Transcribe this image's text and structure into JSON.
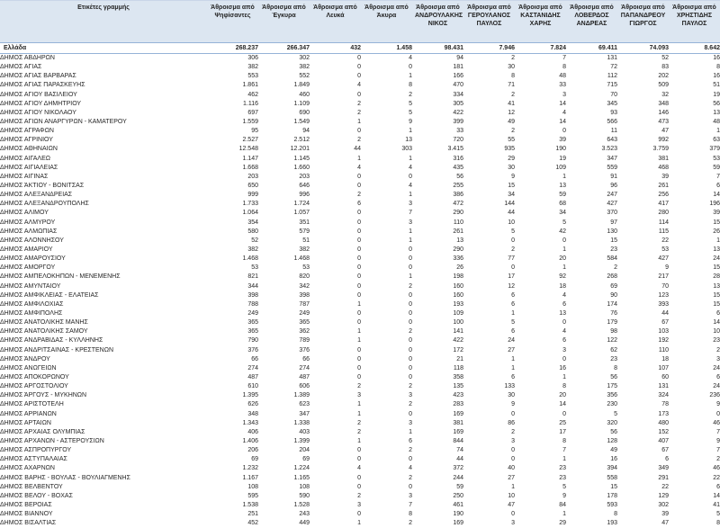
{
  "colors": {
    "header_bg": "#DCE6F1",
    "border": "#95B3D7",
    "text": "#262626"
  },
  "table": {
    "columns": [
      "Ετικέτες γραμμής",
      "Άθροισμα από Ψηφίσαντες",
      "Άθροισμα από Έγκυρα",
      "Άθροισμα από Λευκά",
      "Άθροισμα από Άκυρα",
      "Άθροισμα από ΑΝΔΡΟΥΛΑΚΗΣ ΝΙΚΟΣ",
      "Άθροισμα από ΓΕΡΟΥΛΑΝΟΣ ΠΑΥΛΟΣ",
      "Άθροισμα από ΚΑΣΤΑΝΙΔΗΣ ΧΑΡΗΣ",
      "Άθροισμα από ΛΟΒΕΡΔΟΣ ΑΝΔΡΕΑΣ",
      "Άθροισμα από ΠΑΠΑΝΔΡΕΟΥ ΓΙΩΡΓΟΣ",
      "Άθροισμα από ΧΡΗΣΤΙΔΗΣ ΠΑΥΛΟΣ"
    ],
    "total_row": [
      "Ελλάδα",
      "268.237",
      "266.347",
      "432",
      "1.458",
      "98.431",
      "7.946",
      "7.824",
      "69.411",
      "74.093",
      "8.642"
    ],
    "rows": [
      [
        "ΔΗΜΟΣ ΑΒΔΗΡΩΝ",
        "306",
        "302",
        "0",
        "4",
        "94",
        "2",
        "7",
        "131",
        "52",
        "16"
      ],
      [
        "ΔΗΜΟΣ ΑΓΙΑΣ",
        "382",
        "382",
        "0",
        "0",
        "181",
        "30",
        "8",
        "72",
        "83",
        "8"
      ],
      [
        "ΔΗΜΟΣ ΑΓΙΑΣ ΒΑΡΒΑΡΑΣ",
        "553",
        "552",
        "0",
        "1",
        "166",
        "8",
        "48",
        "112",
        "202",
        "16"
      ],
      [
        "ΔΗΜΟΣ ΑΓΙΑΣ ΠΑΡΑΣΚΕΥΗΣ",
        "1.861",
        "1.849",
        "4",
        "8",
        "470",
        "71",
        "33",
        "715",
        "509",
        "51"
      ],
      [
        "ΔΗΜΟΣ ΑΓΙΟΥ ΒΑΣΙΛΕΙΟΥ",
        "462",
        "460",
        "0",
        "2",
        "334",
        "2",
        "3",
        "70",
        "32",
        "19"
      ],
      [
        "ΔΗΜΟΣ ΑΓΙΟΥ ΔΗΜΗΤΡΙΟΥ",
        "1.116",
        "1.109",
        "2",
        "5",
        "305",
        "41",
        "14",
        "345",
        "348",
        "56"
      ],
      [
        "ΔΗΜΟΣ ΑΓΙΟΥ ΝΙΚΟΛΑΟΥ",
        "697",
        "690",
        "2",
        "5",
        "422",
        "12",
        "4",
        "93",
        "146",
        "13"
      ],
      [
        "ΔΗΜΟΣ ΑΓΙΩΝ ΑΝΑΡΓΥΡΩΝ - ΚΑΜΑΤΕΡΟΥ",
        "1.559",
        "1.549",
        "1",
        "9",
        "399",
        "49",
        "14",
        "566",
        "473",
        "48"
      ],
      [
        "ΔΗΜΟΣ ΑΓΡΑΦΩΝ",
        "95",
        "94",
        "0",
        "1",
        "33",
        "2",
        "0",
        "11",
        "47",
        "1"
      ],
      [
        "ΔΗΜΟΣ ΑΓΡΙΝΙΟΥ",
        "2.527",
        "2.512",
        "2",
        "13",
        "720",
        "55",
        "39",
        "643",
        "992",
        "63"
      ],
      [
        "ΔΗΜΟΣ ΑΘΗΝΑΙΩΝ",
        "12.548",
        "12.201",
        "44",
        "303",
        "3.415",
        "935",
        "190",
        "3.523",
        "3.759",
        "379"
      ],
      [
        "ΔΗΜΟΣ ΑΙΓΑΛΕΩ",
        "1.147",
        "1.145",
        "1",
        "1",
        "316",
        "29",
        "19",
        "347",
        "381",
        "53"
      ],
      [
        "ΔΗΜΟΣ ΑΙΓΙΑΛΕΙΑΣ",
        "1.668",
        "1.660",
        "4",
        "4",
        "435",
        "30",
        "109",
        "559",
        "468",
        "59"
      ],
      [
        "ΔΗΜΟΣ ΑΙΓΙΝΑΣ",
        "203",
        "203",
        "0",
        "0",
        "56",
        "9",
        "1",
        "91",
        "39",
        "7"
      ],
      [
        "ΔΗΜΟΣ ΆΚΤΙΟΥ - ΒΟΝΙΤΣΑΣ",
        "650",
        "646",
        "0",
        "4",
        "255",
        "15",
        "13",
        "96",
        "261",
        "6"
      ],
      [
        "ΔΗΜΟΣ ΑΛΕΞΑΝΔΡΕΙΑΣ",
        "999",
        "996",
        "2",
        "1",
        "386",
        "34",
        "59",
        "247",
        "256",
        "14"
      ],
      [
        "ΔΗΜΟΣ ΑΛΕΞΑΝΔΡΟΥΠΟΛΗΣ",
        "1.733",
        "1.724",
        "6",
        "3",
        "472",
        "144",
        "68",
        "427",
        "417",
        "196"
      ],
      [
        "ΔΗΜΟΣ ΑΛΙΜΟΥ",
        "1.064",
        "1.057",
        "0",
        "7",
        "290",
        "44",
        "34",
        "370",
        "280",
        "39"
      ],
      [
        "ΔΗΜΟΣ ΑΛΜΥΡΟΥ",
        "354",
        "351",
        "0",
        "3",
        "110",
        "10",
        "5",
        "97",
        "114",
        "15"
      ],
      [
        "ΔΗΜΟΣ ΑΛΜΩΠΙΑΣ",
        "580",
        "579",
        "0",
        "1",
        "261",
        "5",
        "42",
        "130",
        "115",
        "26"
      ],
      [
        "ΔΗΜΟΣ ΑΛΟΝΝΗΣΟΥ",
        "52",
        "51",
        "0",
        "1",
        "13",
        "0",
        "0",
        "15",
        "22",
        "1"
      ],
      [
        "ΔΗΜΟΣ ΑΜΑΡΙΟΥ",
        "382",
        "382",
        "0",
        "0",
        "290",
        "2",
        "1",
        "23",
        "53",
        "13"
      ],
      [
        "ΔΗΜΟΣ ΑΜΑΡΟΥΣΙΟΥ",
        "1.468",
        "1.468",
        "0",
        "0",
        "336",
        "77",
        "20",
        "584",
        "427",
        "24"
      ],
      [
        "ΔΗΜΟΣ ΑΜΟΡΓΟΥ",
        "53",
        "53",
        "0",
        "0",
        "26",
        "0",
        "1",
        "2",
        "9",
        "15"
      ],
      [
        "ΔΗΜΟΣ ΑΜΠΕΛΟΚΗΠΩΝ - ΜΕΝΕΜΕΝΗΣ",
        "821",
        "820",
        "0",
        "1",
        "198",
        "17",
        "92",
        "268",
        "217",
        "28"
      ],
      [
        "ΔΗΜΟΣ ΑΜΥΝΤΑΙΟΥ",
        "344",
        "342",
        "0",
        "2",
        "160",
        "12",
        "18",
        "69",
        "70",
        "13"
      ],
      [
        "ΔΗΜΟΣ ΑΜΦΙΚΛΕΙΑΣ - ΕΛΑΤΕΙΑΣ",
        "398",
        "398",
        "0",
        "0",
        "160",
        "6",
        "4",
        "90",
        "123",
        "15"
      ],
      [
        "ΔΗΜΟΣ ΑΜΦΙΛΟΧΙΑΣ",
        "788",
        "787",
        "1",
        "0",
        "193",
        "6",
        "6",
        "174",
        "393",
        "15"
      ],
      [
        "ΔΗΜΟΣ ΑΜΦΙΠΟΛΗΣ",
        "249",
        "249",
        "0",
        "0",
        "109",
        "1",
        "13",
        "76",
        "44",
        "6"
      ],
      [
        "ΔΗΜΟΣ ΑΝΑΤΟΛΙΚΗΣ ΜΑΝΗΣ",
        "365",
        "365",
        "0",
        "0",
        "100",
        "5",
        "0",
        "179",
        "67",
        "14"
      ],
      [
        "ΔΗΜΟΣ ΑΝΑΤΟΛΙΚΗΣ ΣΑΜΟΥ",
        "365",
        "362",
        "1",
        "2",
        "141",
        "6",
        "4",
        "98",
        "103",
        "10"
      ],
      [
        "ΔΗΜΟΣ ΑΝΔΡΑΒΙΔΑΣ - ΚΥΛΛΗΝΗΣ",
        "790",
        "789",
        "1",
        "0",
        "422",
        "24",
        "6",
        "122",
        "192",
        "23"
      ],
      [
        "ΔΗΜΟΣ ΑΝΔΡΙΤΣΑΙΝΑΣ - ΚΡΕΣΤΕΝΩΝ",
        "376",
        "376",
        "0",
        "0",
        "172",
        "27",
        "3",
        "62",
        "110",
        "2"
      ],
      [
        "ΔΗΜΟΣ ΆΝΔΡΟΥ",
        "66",
        "66",
        "0",
        "0",
        "21",
        "1",
        "0",
        "23",
        "18",
        "3"
      ],
      [
        "ΔΗΜΟΣ ΑΝΩΓΕΙΩΝ",
        "274",
        "274",
        "0",
        "0",
        "118",
        "1",
        "16",
        "8",
        "107",
        "24"
      ],
      [
        "ΔΗΜΟΣ ΑΠΟΚΟΡΩΝΟΥ",
        "487",
        "487",
        "0",
        "0",
        "358",
        "6",
        "1",
        "56",
        "60",
        "6"
      ],
      [
        "ΔΗΜΟΣ ΑΡΓΟΣΤΟΛΙΟΥ",
        "610",
        "606",
        "2",
        "2",
        "135",
        "133",
        "8",
        "175",
        "131",
        "24"
      ],
      [
        "ΔΗΜΟΣ ΆΡΓΟΥΣ - ΜΥΚΗΝΩΝ",
        "1.395",
        "1.389",
        "3",
        "3",
        "423",
        "30",
        "20",
        "356",
        "324",
        "236"
      ],
      [
        "ΔΗΜΟΣ ΑΡΙΣΤΟΤΕΛΗ",
        "626",
        "623",
        "1",
        "2",
        "283",
        "9",
        "14",
        "230",
        "78",
        "9"
      ],
      [
        "ΔΗΜΟΣ ΑΡΡΙΑΝΩΝ",
        "348",
        "347",
        "1",
        "0",
        "169",
        "0",
        "0",
        "5",
        "173",
        "0"
      ],
      [
        "ΔΗΜΟΣ ΑΡΤΑΙΩΝ",
        "1.343",
        "1.338",
        "2",
        "3",
        "381",
        "86",
        "25",
        "320",
        "480",
        "46"
      ],
      [
        "ΔΗΜΟΣ ΑΡΧΑΙΑΣ ΟΛΥΜΠΙΑΣ",
        "406",
        "403",
        "2",
        "1",
        "169",
        "2",
        "17",
        "56",
        "152",
        "7"
      ],
      [
        "ΔΗΜΟΣ ΑΡΧΑΝΩΝ - ΑΣΤΕΡΟΥΣΙΩΝ",
        "1.406",
        "1.399",
        "1",
        "6",
        "844",
        "3",
        "8",
        "128",
        "407",
        "9"
      ],
      [
        "ΔΗΜΟΣ ΑΣΠΡΟΠΥΡΓΟΥ",
        "206",
        "204",
        "0",
        "2",
        "74",
        "0",
        "7",
        "49",
        "67",
        "7"
      ],
      [
        "ΔΗΜΟΣ ΑΣΤΥΠΑΛΑΙΑΣ",
        "69",
        "69",
        "0",
        "0",
        "44",
        "0",
        "1",
        "16",
        "6",
        "2"
      ],
      [
        "ΔΗΜΟΣ ΑΧΑΡΝΩΝ",
        "1.232",
        "1.224",
        "4",
        "4",
        "372",
        "40",
        "23",
        "394",
        "349",
        "46"
      ],
      [
        "ΔΗΜΟΣ ΒΑΡΗΣ - ΒΟΥΛΑΣ - ΒΟΥΛΙΑΓΜΕΝΗΣ",
        "1.167",
        "1.165",
        "0",
        "2",
        "244",
        "27",
        "23",
        "558",
        "291",
        "22"
      ],
      [
        "ΔΗΜΟΣ ΒΕΛΒΕΝΤΟΥ",
        "108",
        "108",
        "0",
        "0",
        "59",
        "1",
        "5",
        "15",
        "22",
        "6"
      ],
      [
        "ΔΗΜΟΣ ΒΕΛΟΥ - ΒΟΧΑΣ",
        "595",
        "590",
        "2",
        "3",
        "250",
        "10",
        "9",
        "178",
        "129",
        "14"
      ],
      [
        "ΔΗΜΟΣ ΒΕΡΟΙΑΣ",
        "1.538",
        "1.528",
        "3",
        "7",
        "461",
        "47",
        "84",
        "593",
        "302",
        "41"
      ],
      [
        "ΔΗΜΟΣ ΒΙΑΝΝΟΥ",
        "251",
        "243",
        "0",
        "8",
        "190",
        "0",
        "1",
        "8",
        "39",
        "5"
      ],
      [
        "ΔΗΜΟΣ ΒΙΣΑΛΤΙΑΣ",
        "452",
        "449",
        "1",
        "2",
        "169",
        "3",
        "29",
        "193",
        "47",
        "8"
      ]
    ]
  }
}
